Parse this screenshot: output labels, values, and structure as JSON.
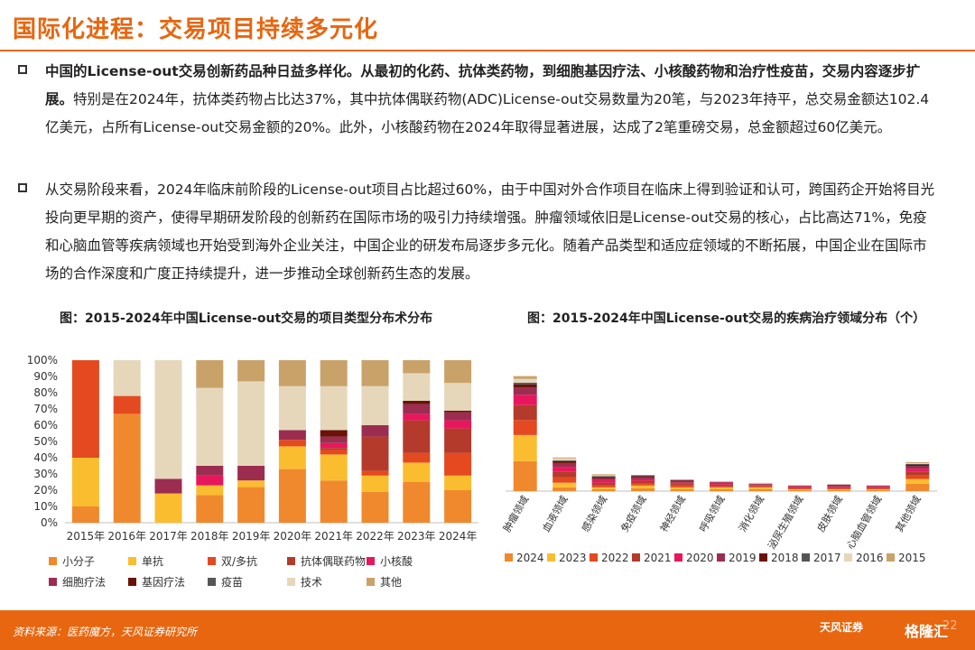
{
  "slide": {
    "title": "国际化进程：交易项目持续多元化",
    "para1_bold": "中国的License-out交易创新药品种日益多样化。从最初的化药、抗体类药物，到细胞基因疗法、小核酸药物和治疗性疫苗，交易内容逐步扩展。",
    "para1_rest": "特别是在2024年，抗体类药物占比达37%，其中抗体偶联药物(ADC)License-out交易数量为20笔，与2023年持平，总交易金额达102.4亿美元，占所有License-out交易金额的20%。此外，小核酸药物在2024年取得显著进展，达成了2笔重磅交易，总金额超过60亿美元。",
    "para2": "从交易阶段来看，2024年临床前阶段的License-out项目占比超过60%，由于中国对外合作项目在临床上得到验证和认可，跨国药企开始将目光投向更早期的资产，使得早期研发阶段的创新药在国际市场的吸引力持续增强。肿瘤领域依旧是License-out交易的核心，占比高达71%，免疫和心脑血管等疾病领域也开始受到海外企业关注，中国企业的研发布局逐步多元化。随着产品类型和适应症领域的不断拓展，中国企业在国际市场的合作深度和广度正持续提升，进一步推动全球创新药生态的发展。",
    "chart1_title": "图：2015-2024年中国License-out交易的项目类型分布术分布",
    "chart2_title": "图：2015-2024年中国License-out交易的疾病治疗领域分布（个）",
    "source": "资料来源：医药魔方，天风证券研究所",
    "logo_text": "天风证券",
    "logo2_text": "格隆汇",
    "page_number": "22"
  },
  "chart_data": [
    {
      "type": "bar",
      "stacked": true,
      "percent": true,
      "categories": [
        "2015年",
        "2016年",
        "2017年",
        "2018年",
        "2019年",
        "2020年",
        "2021年",
        "2022年",
        "2023年",
        "2024年"
      ],
      "yticks": [
        "0%",
        "10%",
        "20%",
        "30%",
        "40%",
        "50%",
        "60%",
        "70%",
        "80%",
        "90%",
        "100%"
      ],
      "ylim": [
        0,
        100
      ],
      "grid": false,
      "legend_position": "bottom",
      "series": [
        {
          "name": "小分子",
          "color": "#f0892e",
          "values": [
            10,
            67,
            0,
            17,
            22,
            33,
            26,
            19,
            25,
            20
          ]
        },
        {
          "name": "单抗",
          "color": "#fbbd30",
          "values": [
            30,
            0,
            18,
            6,
            4,
            14,
            16,
            10,
            12,
            9
          ]
        },
        {
          "name": "双/多抗",
          "color": "#e4491f",
          "values": [
            60,
            11,
            0,
            0,
            0,
            4,
            3,
            3,
            6,
            14
          ]
        },
        {
          "name": "抗体偶联药物",
          "color": "#b43a2b",
          "values": [
            0,
            0,
            0,
            0,
            0,
            0,
            1,
            21,
            20,
            15
          ]
        },
        {
          "name": "小核酸",
          "color": "#e8175d",
          "values": [
            0,
            0,
            0,
            6,
            0,
            0,
            3,
            0,
            4,
            5
          ]
        },
        {
          "name": "细胞疗法",
          "color": "#9c2d50",
          "values": [
            0,
            0,
            9,
            6,
            9,
            6,
            4,
            7,
            6,
            5
          ]
        },
        {
          "name": "基因疗法",
          "color": "#6b1208",
          "values": [
            0,
            0,
            0,
            0,
            0,
            0,
            4,
            0,
            2,
            1
          ]
        },
        {
          "name": "疫苗",
          "color": "#555555",
          "values": [
            0,
            0,
            0,
            0,
            0,
            0,
            0,
            0,
            0,
            0
          ]
        },
        {
          "name": "技术",
          "color": "#e6d7bb",
          "values": [
            0,
            22,
            73,
            48,
            52,
            27,
            27,
            24,
            17,
            17
          ]
        },
        {
          "name": "其他",
          "color": "#c9a26a",
          "values": [
            0,
            0,
            0,
            17,
            13,
            16,
            16,
            16,
            8,
            14
          ]
        }
      ]
    },
    {
      "type": "bar",
      "stacked": true,
      "categories": [
        "肿瘤领域",
        "血液领域",
        "感染领域",
        "免疫领域",
        "神经领域",
        "呼吸领域",
        "消化领域",
        "泌尿生殖领域",
        "皮肤领域",
        "心脑血管领域",
        "其他领域"
      ],
      "ylim": [
        0,
        140
      ],
      "legend_position": "bottom",
      "series": [
        {
          "name": "2024",
          "color": "#f0892e",
          "values": [
            32,
            4,
            2,
            3,
            2,
            2,
            2,
            1,
            1,
            1,
            8
          ]
        },
        {
          "name": "2023",
          "color": "#fbbd30",
          "values": [
            28,
            5,
            2,
            3,
            2,
            2,
            2,
            1,
            1,
            1,
            5
          ]
        },
        {
          "name": "2022",
          "color": "#e4491f",
          "values": [
            16,
            6,
            2,
            2,
            2,
            1,
            1,
            1,
            1,
            1,
            4
          ]
        },
        {
          "name": "2021",
          "color": "#b43a2b",
          "values": [
            16,
            6,
            3,
            3,
            2,
            2,
            1,
            1,
            1,
            1,
            4
          ]
        },
        {
          "name": "2020",
          "color": "#e8175d",
          "values": [
            11,
            5,
            3,
            2,
            1,
            2,
            1,
            1,
            1,
            1,
            3
          ]
        },
        {
          "name": "2019",
          "color": "#9c2d50",
          "values": [
            8,
            4,
            2,
            2,
            2,
            1,
            1,
            1,
            1,
            1,
            3
          ]
        },
        {
          "name": "2018",
          "color": "#6b1208",
          "values": [
            3,
            2,
            1,
            1,
            1,
            0,
            0,
            0,
            1,
            0,
            1
          ]
        },
        {
          "name": "2017",
          "color": "#555555",
          "values": [
            2,
            1,
            1,
            1,
            0,
            0,
            0,
            0,
            0,
            0,
            1
          ]
        },
        {
          "name": "2016",
          "color": "#e6d7bb",
          "values": [
            4,
            2,
            1,
            0,
            0,
            0,
            1,
            0,
            0,
            0,
            1
          ]
        },
        {
          "name": "2015",
          "color": "#c9a26a",
          "values": [
            3,
            1,
            1,
            0,
            0,
            0,
            0,
            0,
            0,
            0,
            1
          ]
        }
      ]
    }
  ]
}
